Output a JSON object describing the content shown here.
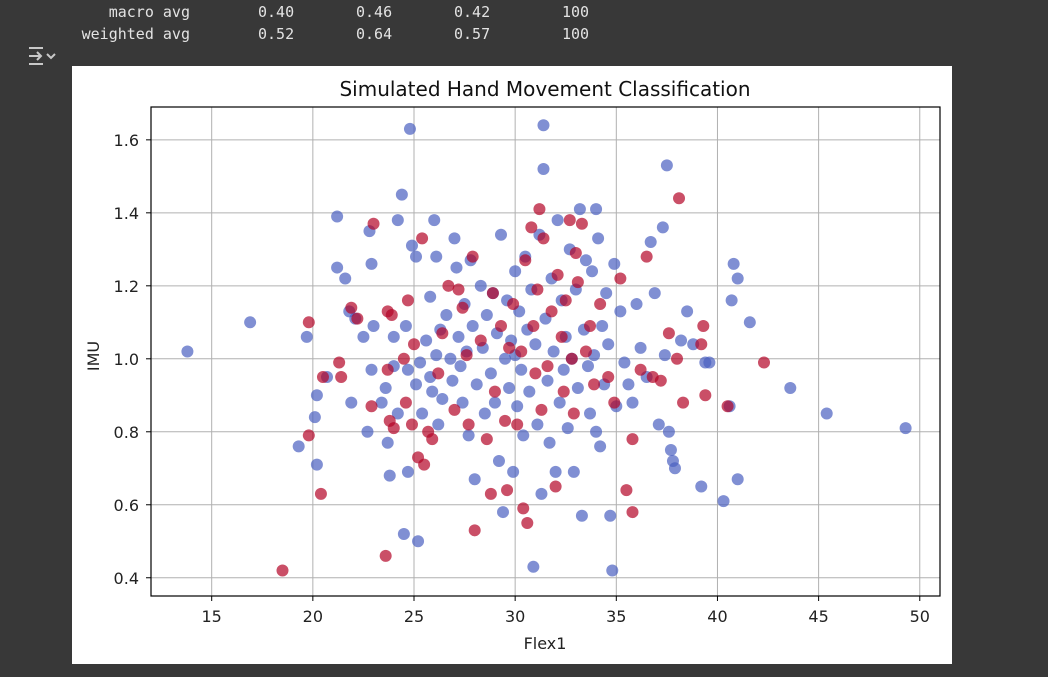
{
  "report": {
    "rows": [
      {
        "label": "macro avg",
        "precision": "0.40",
        "recall": "0.46",
        "f1": "0.42",
        "support": "100"
      },
      {
        "label": "weighted avg",
        "precision": "0.52",
        "recall": "0.64",
        "f1": "0.57",
        "support": "100"
      }
    ]
  },
  "output_icon": "output-options-icon",
  "chart_data": {
    "type": "scatter",
    "title": "Simulated Hand Movement Classification",
    "xlabel": "Flex1",
    "ylabel": "IMU",
    "xlim": [
      12,
      51
    ],
    "ylim": [
      0.35,
      1.69
    ],
    "xticks": [
      15,
      20,
      25,
      30,
      35,
      40,
      45,
      50
    ],
    "yticks": [
      0.4,
      0.6,
      0.8,
      1.0,
      1.2,
      1.4,
      1.6
    ],
    "grid": true,
    "colors": {
      "class_blue": "#4a5fc1",
      "class_red": "#b40426"
    },
    "series": [
      {
        "color_key": "class_blue",
        "points": [
          [
            13.8,
            1.02
          ],
          [
            16.9,
            1.1
          ],
          [
            19.3,
            0.76
          ],
          [
            19.7,
            1.06
          ],
          [
            20.1,
            0.84
          ],
          [
            20.2,
            0.9
          ],
          [
            20.2,
            0.71
          ],
          [
            20.7,
            0.95
          ],
          [
            21.2,
            1.39
          ],
          [
            21.2,
            1.25
          ],
          [
            21.6,
            1.22
          ],
          [
            21.9,
            0.88
          ],
          [
            21.8,
            1.13
          ],
          [
            22.1,
            1.11
          ],
          [
            22.5,
            1.06
          ],
          [
            22.7,
            0.8
          ],
          [
            22.8,
            1.35
          ],
          [
            22.9,
            1.26
          ],
          [
            22.9,
            0.97
          ],
          [
            23.0,
            1.09
          ],
          [
            23.4,
            0.88
          ],
          [
            23.6,
            0.92
          ],
          [
            23.7,
            0.77
          ],
          [
            23.8,
            0.68
          ],
          [
            24.0,
            1.06
          ],
          [
            24.0,
            0.98
          ],
          [
            24.2,
            0.85
          ],
          [
            24.2,
            1.38
          ],
          [
            24.4,
            1.45
          ],
          [
            24.5,
            0.52
          ],
          [
            24.6,
            1.09
          ],
          [
            24.7,
            0.97
          ],
          [
            24.7,
            0.69
          ],
          [
            24.8,
            1.63
          ],
          [
            24.9,
            1.31
          ],
          [
            25.1,
            1.28
          ],
          [
            25.1,
            0.93
          ],
          [
            25.2,
            0.5
          ],
          [
            25.3,
            0.99
          ],
          [
            25.4,
            0.85
          ],
          [
            25.6,
            1.05
          ],
          [
            25.8,
            1.17
          ],
          [
            25.8,
            0.95
          ],
          [
            25.9,
            0.91
          ],
          [
            26.0,
            1.38
          ],
          [
            26.1,
            1.28
          ],
          [
            26.1,
            1.01
          ],
          [
            26.2,
            0.82
          ],
          [
            26.3,
            1.08
          ],
          [
            26.4,
            0.89
          ],
          [
            26.6,
            1.12
          ],
          [
            26.8,
            1.0
          ],
          [
            26.9,
            0.94
          ],
          [
            27.0,
            1.33
          ],
          [
            27.1,
            1.25
          ],
          [
            27.2,
            1.06
          ],
          [
            27.3,
            0.98
          ],
          [
            27.4,
            0.88
          ],
          [
            27.5,
            1.15
          ],
          [
            27.6,
            1.02
          ],
          [
            27.7,
            0.79
          ],
          [
            27.8,
            1.27
          ],
          [
            27.9,
            1.09
          ],
          [
            28.0,
            0.67
          ],
          [
            28.1,
            0.93
          ],
          [
            28.3,
            1.2
          ],
          [
            28.4,
            1.03
          ],
          [
            28.5,
            0.85
          ],
          [
            28.6,
            1.12
          ],
          [
            28.8,
            0.96
          ],
          [
            28.9,
            1.18
          ],
          [
            29.0,
            0.88
          ],
          [
            29.1,
            1.07
          ],
          [
            29.2,
            0.72
          ],
          [
            29.3,
            1.34
          ],
          [
            29.4,
            0.58
          ],
          [
            29.5,
            1.0
          ],
          [
            29.6,
            1.16
          ],
          [
            29.7,
            0.92
          ],
          [
            29.8,
            1.05
          ],
          [
            29.9,
            0.69
          ],
          [
            30.0,
            1.24
          ],
          [
            30.0,
            1.01
          ],
          [
            30.1,
            0.87
          ],
          [
            30.2,
            1.13
          ],
          [
            30.3,
            0.97
          ],
          [
            30.4,
            0.79
          ],
          [
            30.5,
            1.28
          ],
          [
            30.6,
            1.08
          ],
          [
            30.7,
            0.91
          ],
          [
            30.8,
            1.19
          ],
          [
            30.9,
            0.43
          ],
          [
            31.0,
            1.04
          ],
          [
            31.1,
            0.82
          ],
          [
            31.2,
            1.34
          ],
          [
            31.3,
            0.63
          ],
          [
            31.4,
            1.52
          ],
          [
            31.4,
            1.64
          ],
          [
            31.5,
            1.11
          ],
          [
            31.6,
            0.94
          ],
          [
            31.7,
            0.77
          ],
          [
            31.8,
            1.22
          ],
          [
            31.9,
            1.02
          ],
          [
            32.0,
            0.69
          ],
          [
            32.1,
            1.38
          ],
          [
            32.2,
            0.88
          ],
          [
            32.3,
            1.16
          ],
          [
            32.4,
            0.97
          ],
          [
            32.5,
            1.06
          ],
          [
            32.6,
            0.81
          ],
          [
            32.7,
            1.3
          ],
          [
            32.8,
            1.0
          ],
          [
            32.9,
            0.69
          ],
          [
            33.0,
            1.19
          ],
          [
            33.1,
            0.92
          ],
          [
            33.2,
            1.41
          ],
          [
            33.3,
            0.57
          ],
          [
            33.4,
            1.08
          ],
          [
            33.5,
            1.27
          ],
          [
            33.6,
            0.98
          ],
          [
            33.7,
            0.85
          ],
          [
            33.8,
            1.24
          ],
          [
            33.9,
            1.01
          ],
          [
            34.0,
            0.8
          ],
          [
            34.0,
            1.41
          ],
          [
            34.1,
            1.33
          ],
          [
            34.2,
            0.76
          ],
          [
            34.3,
            1.09
          ],
          [
            34.4,
            0.93
          ],
          [
            34.5,
            1.18
          ],
          [
            34.6,
            1.04
          ],
          [
            34.7,
            0.57
          ],
          [
            34.8,
            0.42
          ],
          [
            34.9,
            1.26
          ],
          [
            35.0,
            0.87
          ],
          [
            35.2,
            1.13
          ],
          [
            35.4,
            0.99
          ],
          [
            35.6,
            0.93
          ],
          [
            35.8,
            0.88
          ],
          [
            36.0,
            1.15
          ],
          [
            36.2,
            1.03
          ],
          [
            36.5,
            0.95
          ],
          [
            36.7,
            1.32
          ],
          [
            36.9,
            1.18
          ],
          [
            37.1,
            0.82
          ],
          [
            37.3,
            1.36
          ],
          [
            37.4,
            1.01
          ],
          [
            37.5,
            1.53
          ],
          [
            37.6,
            0.8
          ],
          [
            37.7,
            0.75
          ],
          [
            37.8,
            0.72
          ],
          [
            37.9,
            0.7
          ],
          [
            38.2,
            1.05
          ],
          [
            38.5,
            1.13
          ],
          [
            38.8,
            1.04
          ],
          [
            39.2,
            0.65
          ],
          [
            39.4,
            0.99
          ],
          [
            39.6,
            0.99
          ],
          [
            40.3,
            0.61
          ],
          [
            40.6,
            0.87
          ],
          [
            40.7,
            1.16
          ],
          [
            40.8,
            1.26
          ],
          [
            41.0,
            0.67
          ],
          [
            41.0,
            1.22
          ],
          [
            41.6,
            1.1
          ],
          [
            43.6,
            0.92
          ],
          [
            45.4,
            0.85
          ],
          [
            49.3,
            0.81
          ]
        ]
      },
      {
        "color_key": "class_red",
        "points": [
          [
            18.5,
            0.42
          ],
          [
            19.8,
            0.79
          ],
          [
            19.8,
            1.1
          ],
          [
            20.4,
            0.63
          ],
          [
            20.5,
            0.95
          ],
          [
            21.3,
            0.99
          ],
          [
            21.4,
            0.95
          ],
          [
            21.9,
            1.14
          ],
          [
            22.2,
            1.11
          ],
          [
            22.9,
            0.87
          ],
          [
            23.0,
            1.37
          ],
          [
            23.6,
            0.46
          ],
          [
            23.7,
            0.97
          ],
          [
            23.7,
            1.13
          ],
          [
            23.8,
            0.83
          ],
          [
            23.9,
            1.12
          ],
          [
            24.0,
            0.81
          ],
          [
            24.5,
            1.0
          ],
          [
            24.6,
            0.88
          ],
          [
            24.7,
            1.16
          ],
          [
            24.9,
            0.82
          ],
          [
            25.0,
            1.04
          ],
          [
            25.2,
            0.73
          ],
          [
            25.4,
            1.33
          ],
          [
            25.5,
            0.71
          ],
          [
            25.7,
            0.8
          ],
          [
            25.9,
            0.78
          ],
          [
            26.2,
            0.96
          ],
          [
            26.4,
            1.07
          ],
          [
            26.7,
            1.2
          ],
          [
            27.0,
            0.86
          ],
          [
            27.2,
            1.19
          ],
          [
            27.4,
            1.14
          ],
          [
            27.6,
            1.01
          ],
          [
            27.7,
            0.82
          ],
          [
            27.9,
            1.28
          ],
          [
            28.0,
            0.53
          ],
          [
            28.3,
            1.05
          ],
          [
            28.6,
            0.78
          ],
          [
            28.8,
            0.63
          ],
          [
            28.9,
            1.18
          ],
          [
            29.0,
            0.91
          ],
          [
            29.3,
            1.09
          ],
          [
            29.5,
            0.83
          ],
          [
            29.6,
            0.64
          ],
          [
            29.7,
            1.03
          ],
          [
            29.9,
            1.15
          ],
          [
            30.1,
            0.82
          ],
          [
            30.3,
            1.02
          ],
          [
            30.4,
            0.59
          ],
          [
            30.5,
            1.27
          ],
          [
            30.6,
            0.55
          ],
          [
            30.8,
            1.36
          ],
          [
            30.9,
            1.09
          ],
          [
            31.0,
            0.96
          ],
          [
            31.1,
            1.19
          ],
          [
            31.2,
            1.41
          ],
          [
            31.3,
            0.86
          ],
          [
            31.4,
            1.33
          ],
          [
            31.6,
            0.98
          ],
          [
            31.8,
            1.13
          ],
          [
            32.0,
            0.65
          ],
          [
            32.1,
            1.23
          ],
          [
            32.3,
            1.06
          ],
          [
            32.4,
            0.91
          ],
          [
            32.5,
            1.16
          ],
          [
            32.7,
            1.38
          ],
          [
            32.8,
            1.0
          ],
          [
            32.9,
            0.85
          ],
          [
            33.0,
            1.29
          ],
          [
            33.1,
            1.21
          ],
          [
            33.3,
            1.37
          ],
          [
            33.5,
            1.02
          ],
          [
            33.7,
            1.09
          ],
          [
            33.9,
            0.93
          ],
          [
            34.2,
            1.15
          ],
          [
            34.6,
            0.95
          ],
          [
            34.9,
            0.88
          ],
          [
            35.2,
            1.22
          ],
          [
            35.5,
            0.64
          ],
          [
            35.8,
            0.58
          ],
          [
            35.8,
            0.78
          ],
          [
            36.2,
            0.97
          ],
          [
            36.5,
            1.28
          ],
          [
            36.8,
            0.95
          ],
          [
            37.2,
            0.94
          ],
          [
            37.6,
            1.07
          ],
          [
            38.0,
            1.0
          ],
          [
            38.1,
            1.44
          ],
          [
            38.3,
            0.88
          ],
          [
            39.2,
            1.04
          ],
          [
            39.3,
            1.09
          ],
          [
            39.4,
            0.9
          ],
          [
            40.5,
            0.87
          ],
          [
            42.3,
            0.99
          ]
        ]
      }
    ]
  }
}
